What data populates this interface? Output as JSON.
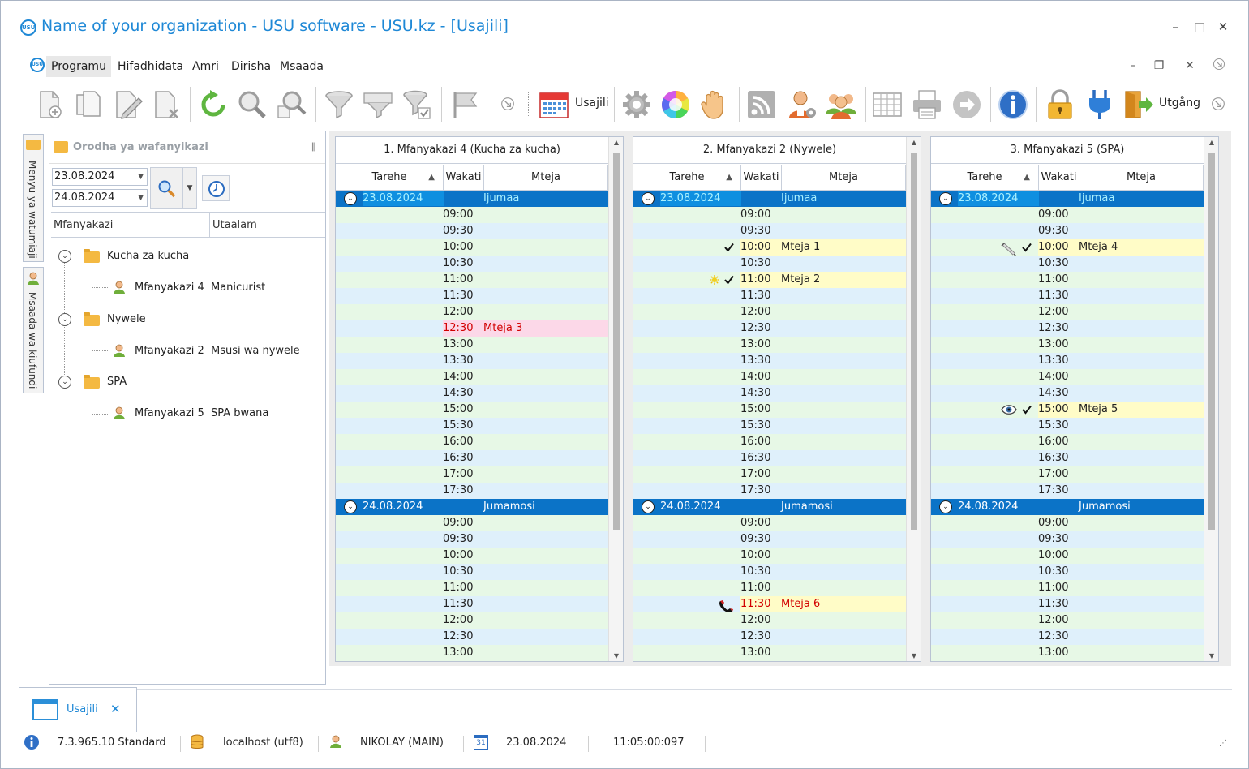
{
  "window": {
    "title": "Name of your organization - USU software - USU.kz - [Usajili]",
    "logo_text": "USU",
    "minimize": "–",
    "maximize": "□",
    "close": "✕"
  },
  "menu": {
    "items": [
      "Programu",
      "Hifadhidata",
      "Amri",
      "Dirisha",
      "Msaada"
    ],
    "active": "Programu",
    "mdi_minimize": "–",
    "mdi_restore": "❐",
    "mdi_close": "✕"
  },
  "toolbar": {
    "usajili_label": "Usajili",
    "exit_label": "Utgång",
    "icons": [
      "new-document",
      "copy",
      "edit",
      "delete",
      "refresh",
      "search",
      "advanced-search",
      "filter",
      "filter-settings",
      "filter-check",
      "flag",
      "calendar",
      "settings",
      "color-wheel",
      "hand",
      "rss",
      "user-settings",
      "users-group",
      "table",
      "print",
      "forward",
      "info",
      "lock",
      "plugin",
      "exit"
    ]
  },
  "side_rails": {
    "rail1": "Menyu ya watumiaji",
    "rail2": "Msaada wa kiufundi"
  },
  "left_panel": {
    "title": "Orodha ya wafanyikazi",
    "pin": "∥",
    "date_from": "23.08.2024",
    "date_to": "24.08.2024",
    "col_employee": "Mfanyakazi",
    "col_specialty": "Utaalam",
    "groups": [
      {
        "name": "Kucha za kucha",
        "employee": "Mfanyakazi 4",
        "specialty": "Manicurist"
      },
      {
        "name": "Nywele",
        "employee": "Mfanyakazi 2",
        "specialty": "Msusi wa nywele"
      },
      {
        "name": "SPA",
        "employee": "Mfanyakazi 5",
        "specialty": "SPA bwana"
      }
    ]
  },
  "schedule": {
    "col_date": "Tarehe",
    "col_time": "Wakati",
    "col_client": "Mteja",
    "panels": [
      {
        "title": "1. Mfanyakazi 4 (Kucha za kucha)",
        "day1": {
          "date": "23.08.2024",
          "weekday": "Ijumaa"
        },
        "day2": {
          "date": "24.08.2024",
          "weekday": "Jumamosi"
        },
        "appointments": [
          {
            "day": 1,
            "time": "12:30",
            "client": "Mteja 3",
            "color": "pink",
            "red": true,
            "icons": []
          }
        ]
      },
      {
        "title": "2. Mfanyakazi 2 (Nywele)",
        "day1": {
          "date": "23.08.2024",
          "weekday": "Ijumaa"
        },
        "day2": {
          "date": "24.08.2024",
          "weekday": "Jumamosi"
        },
        "appointments": [
          {
            "day": 1,
            "time": "10:00",
            "client": "Mteja 1",
            "color": "yellow",
            "red": false,
            "icons": [
              "check"
            ]
          },
          {
            "day": 1,
            "time": "11:00",
            "client": "Mteja 2",
            "color": "yellow",
            "red": false,
            "icons": [
              "star",
              "check"
            ]
          },
          {
            "day": 2,
            "time": "11:30",
            "client": "Mteja 6",
            "color": "yellow",
            "red": true,
            "icons": [
              "phone"
            ]
          }
        ]
      },
      {
        "title": "3. Mfanyakazi 5 (SPA)",
        "day1": {
          "date": "23.08.2024",
          "weekday": "Ijumaa"
        },
        "day2": {
          "date": "24.08.2024",
          "weekday": "Jumamosi"
        },
        "appointments": [
          {
            "day": 1,
            "time": "10:00",
            "client": "Mteja 4",
            "color": "yellow",
            "red": false,
            "icons": [
              "syringe",
              "check"
            ]
          },
          {
            "day": 1,
            "time": "15:00",
            "client": "Mteja 5",
            "color": "yellow",
            "red": false,
            "icons": [
              "eye",
              "check"
            ]
          }
        ]
      }
    ],
    "day1_times": [
      "09:00",
      "09:30",
      "10:00",
      "10:30",
      "11:00",
      "11:30",
      "12:00",
      "12:30",
      "13:00",
      "13:30",
      "14:00",
      "14:30",
      "15:00",
      "15:30",
      "16:00",
      "16:30",
      "17:00",
      "17:30"
    ],
    "day2_times": [
      "09:00",
      "09:30",
      "10:00",
      "10:30",
      "11:00",
      "11:30",
      "12:00",
      "12:30",
      "13:00"
    ]
  },
  "tabs": {
    "usajili": "Usajili",
    "close": "✕"
  },
  "status": {
    "version": "7.3.965.10 Standard",
    "db": "localhost (utf8)",
    "user": "NIKOLAY (MAIN)",
    "calendar_icon_text": "31",
    "date": "23.08.2024",
    "time": "11:05:00:097"
  },
  "colors": {
    "accent": "#1e88d6",
    "day_row": "#0b73c7",
    "row_green": "#e7f8e6",
    "row_blue": "#dff0fb",
    "highlight_yellow": "#fffcc7",
    "highlight_pink": "#fcd8e8"
  }
}
